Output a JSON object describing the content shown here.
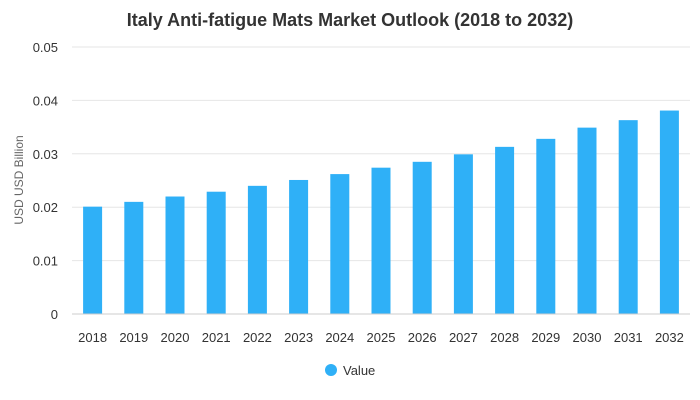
{
  "chart_data": {
    "type": "bar",
    "title": "Italy Anti-fatigue Mats Market Outlook (2018 to 2032)",
    "ylabel": "USD USD Billion",
    "xlabel": "",
    "categories": [
      "2018",
      "2019",
      "2020",
      "2021",
      "2022",
      "2023",
      "2024",
      "2025",
      "2026",
      "2027",
      "2028",
      "2029",
      "2030",
      "2031",
      "2032"
    ],
    "series": [
      {
        "name": "Value",
        "values": [
          0.0201,
          0.021,
          0.022,
          0.0229,
          0.024,
          0.0251,
          0.0262,
          0.0274,
          0.0285,
          0.0299,
          0.0313,
          0.0328,
          0.0349,
          0.0363,
          0.0381
        ],
        "color": "#2fb0f7"
      }
    ],
    "ylim": [
      0,
      0.05
    ],
    "yticks": [
      "0",
      "0.01",
      "0.02",
      "0.03",
      "0.04",
      "0.05"
    ],
    "grid": true,
    "legend_position": "bottom"
  }
}
